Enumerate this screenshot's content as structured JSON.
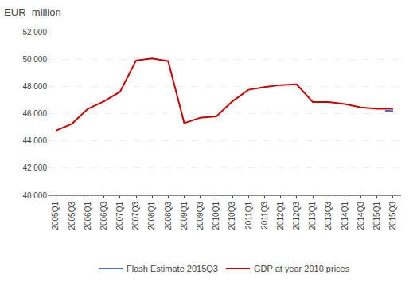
{
  "chart_data": {
    "type": "line",
    "title": "EUR  million",
    "categories": [
      "2005Q1",
      "2005Q3",
      "2006Q1",
      "2006Q3",
      "2007Q1",
      "2007Q3",
      "2008Q1",
      "2008Q3",
      "2009Q1",
      "2009Q3",
      "2010Q1",
      "2010Q3",
      "2011Q1",
      "2011Q3",
      "2012Q1",
      "2012Q3",
      "2013Q1",
      "2013Q3",
      "2014Q1",
      "2014Q3",
      "2015Q1",
      "2015Q3"
    ],
    "series": [
      {
        "name": "GDP at year 2010 prices",
        "color": "#cc0000",
        "values": [
          44750,
          45250,
          46350,
          46900,
          47600,
          49900,
          50050,
          49850,
          45300,
          45700,
          45800,
          46900,
          47750,
          47950,
          48100,
          48150,
          46850,
          46850,
          46700,
          46450,
          46350,
          46350
        ]
      },
      {
        "name": "Flash Estimate 2015Q3",
        "color": "#4472c4",
        "x": [
          20.5,
          21
        ],
        "values": [
          46200,
          46200
        ]
      }
    ],
    "ylim": [
      40000,
      52000
    ],
    "yticks": [
      {
        "value": 40000,
        "label": "40 000"
      },
      {
        "value": 42000,
        "label": "42 000"
      },
      {
        "value": 44000,
        "label": "44 000"
      },
      {
        "value": 46000,
        "label": "46 000"
      },
      {
        "value": 48000,
        "label": "48 000"
      },
      {
        "value": 50000,
        "label": "50 000"
      },
      {
        "value": 52000,
        "label": "52 000"
      }
    ],
    "grid": true,
    "legend": "bottom"
  }
}
